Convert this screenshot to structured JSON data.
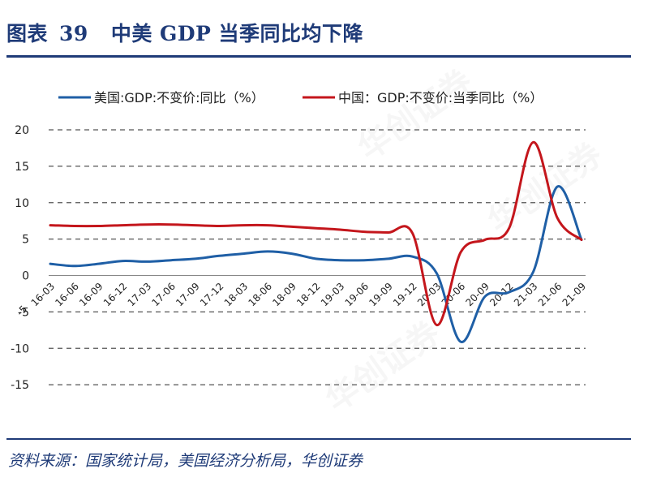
{
  "header": {
    "label": "图表",
    "number": "39",
    "title": "中美 GDP 当季同比均下降"
  },
  "source": "资料来源：国家统计局，美国经济分析局，华创证券",
  "watermark": "华创证券",
  "colors": {
    "us": "#1f5fa6",
    "cn": "#c4161c",
    "grid": "#555555",
    "title": "#1f3b78"
  },
  "chart_data": {
    "type": "line",
    "categories": [
      "16-03",
      "16-06",
      "16-09",
      "16-12",
      "17-03",
      "17-06",
      "17-09",
      "17-12",
      "18-03",
      "18-06",
      "18-09",
      "18-12",
      "19-03",
      "19-06",
      "19-09",
      "19-12",
      "20-03",
      "20-06",
      "20-09",
      "20-12",
      "21-03",
      "21-06",
      "21-09"
    ],
    "x_tick_prefix": "-5",
    "series": [
      {
        "name": "美国:GDP:不变价:同比（%）",
        "color": "#1f5fa6",
        "values": [
          1.6,
          1.3,
          1.6,
          2.0,
          1.9,
          2.1,
          2.3,
          2.7,
          3.0,
          3.3,
          3.0,
          2.3,
          2.1,
          2.1,
          2.3,
          2.6,
          0.3,
          -9.1,
          -2.9,
          -2.3,
          0.5,
          12.2,
          4.9
        ]
      },
      {
        "name": "中国：GDP:不变价:当季同比（%）",
        "color": "#c4161c",
        "values": [
          6.9,
          6.8,
          6.8,
          6.9,
          7.0,
          7.0,
          6.9,
          6.8,
          6.9,
          6.9,
          6.7,
          6.5,
          6.3,
          6.0,
          5.9,
          5.8,
          -6.8,
          3.2,
          4.9,
          6.5,
          18.3,
          7.9,
          4.9
        ]
      }
    ],
    "y_ticks": [
      20,
      15,
      10,
      5,
      0,
      -5,
      -10,
      -15
    ],
    "ylim": [
      -15,
      20
    ],
    "grid": "dashed horizontal",
    "legend": "top"
  }
}
